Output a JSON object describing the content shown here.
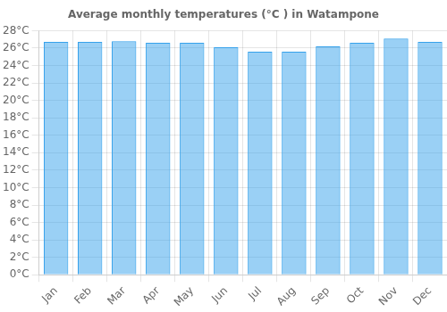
{
  "chart_data": {
    "type": "bar",
    "title": "Average monthly temperatures (°C ) in Watampone",
    "categories": [
      "Jan",
      "Feb",
      "Mar",
      "Apr",
      "May",
      "Jun",
      "Jul",
      "Aug",
      "Sep",
      "Oct",
      "Nov",
      "Dec"
    ],
    "values": [
      26.7,
      26.7,
      26.8,
      26.6,
      26.6,
      26.1,
      25.6,
      25.6,
      26.2,
      26.6,
      27.1,
      26.7
    ],
    "ylim": [
      0,
      28
    ],
    "yticks": [
      {
        "value": 0,
        "label": "0°C"
      },
      {
        "value": 2,
        "label": "2°C"
      },
      {
        "value": 4,
        "label": "4°C"
      },
      {
        "value": 6,
        "label": "6°C"
      },
      {
        "value": 8,
        "label": "8°C"
      },
      {
        "value": 10,
        "label": "10°C"
      },
      {
        "value": 12,
        "label": "12°C"
      },
      {
        "value": 14,
        "label": "14°C"
      },
      {
        "value": 16,
        "label": "16°C"
      },
      {
        "value": 18,
        "label": "18°C"
      },
      {
        "value": 20,
        "label": "20°C"
      },
      {
        "value": 22,
        "label": "22°C"
      },
      {
        "value": 24,
        "label": "24°C"
      },
      {
        "value": 26,
        "label": "26°C"
      },
      {
        "value": 28,
        "label": "28°C"
      }
    ],
    "grid": true
  }
}
